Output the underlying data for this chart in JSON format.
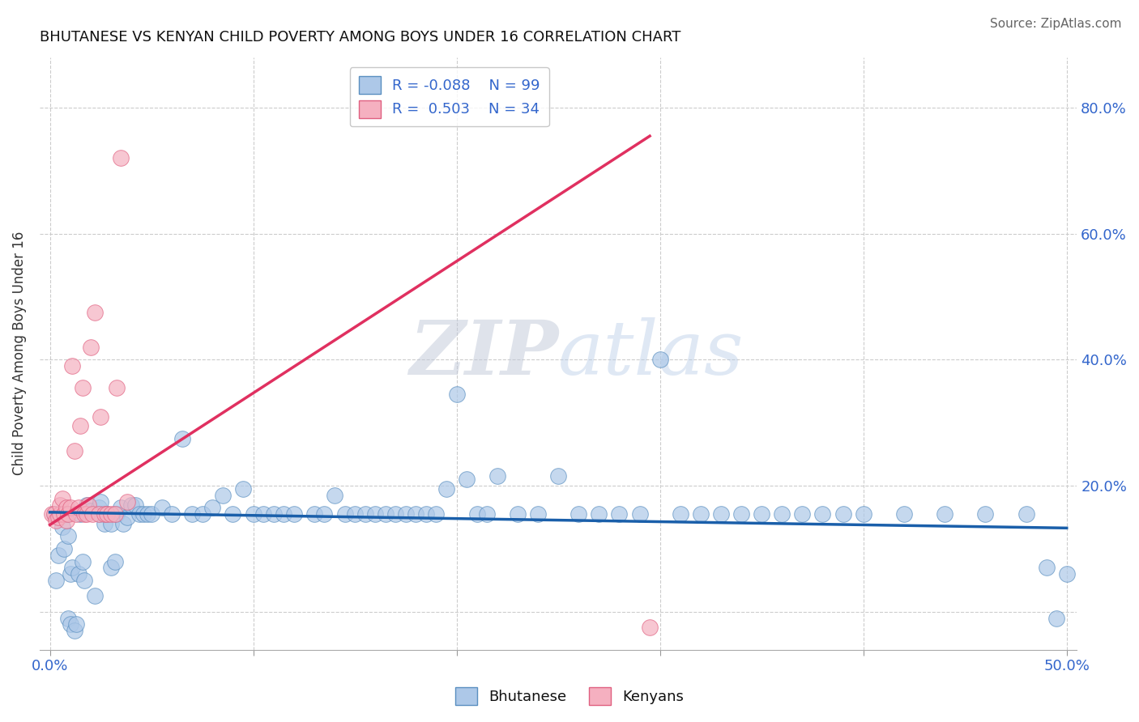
{
  "title": "BHUTANESE VS KENYAN CHILD POVERTY AMONG BOYS UNDER 16 CORRELATION CHART",
  "source": "Source: ZipAtlas.com",
  "ylabel": "Child Poverty Among Boys Under 16",
  "xlim": [
    -0.005,
    0.505
  ],
  "ylim": [
    -0.06,
    0.88
  ],
  "blue_color": "#adc8e8",
  "blue_edge": "#5a8fc0",
  "pink_color": "#f5b0c0",
  "pink_edge": "#e06080",
  "blue_line_color": "#1a5faa",
  "pink_line_color": "#e03060",
  "R_blue": -0.088,
  "N_blue": 99,
  "R_pink": 0.503,
  "N_pink": 34,
  "watermark_text": "ZIPatlas",
  "grid_color": "#cccccc",
  "bg_color": "#ffffff",
  "blue_line_x": [
    0.0,
    0.5
  ],
  "blue_line_y": [
    0.158,
    0.133
  ],
  "pink_line_x": [
    0.0,
    0.295
  ],
  "pink_line_y": [
    0.138,
    0.755
  ],
  "blue_x": [
    0.002,
    0.003,
    0.004,
    0.005,
    0.006,
    0.006,
    0.007,
    0.007,
    0.008,
    0.009,
    0.009,
    0.01,
    0.01,
    0.011,
    0.012,
    0.013,
    0.014,
    0.015,
    0.016,
    0.017,
    0.018,
    0.02,
    0.022,
    0.024,
    0.025,
    0.025,
    0.027,
    0.028,
    0.03,
    0.03,
    0.032,
    0.033,
    0.035,
    0.036,
    0.038,
    0.04,
    0.042,
    0.044,
    0.046,
    0.048,
    0.05,
    0.055,
    0.06,
    0.065,
    0.07,
    0.075,
    0.08,
    0.085,
    0.09,
    0.095,
    0.1,
    0.105,
    0.11,
    0.115,
    0.12,
    0.13,
    0.135,
    0.14,
    0.145,
    0.15,
    0.155,
    0.16,
    0.165,
    0.17,
    0.175,
    0.18,
    0.185,
    0.19,
    0.195,
    0.2,
    0.205,
    0.21,
    0.215,
    0.22,
    0.23,
    0.24,
    0.25,
    0.26,
    0.27,
    0.28,
    0.29,
    0.3,
    0.31,
    0.32,
    0.33,
    0.34,
    0.35,
    0.36,
    0.37,
    0.38,
    0.39,
    0.4,
    0.42,
    0.44,
    0.46,
    0.48,
    0.49,
    0.495,
    0.5
  ],
  "blue_y": [
    0.155,
    0.05,
    0.09,
    0.155,
    0.155,
    0.135,
    0.155,
    0.1,
    0.155,
    0.12,
    -0.01,
    0.06,
    -0.02,
    0.07,
    -0.03,
    -0.02,
    0.06,
    0.155,
    0.08,
    0.05,
    0.17,
    0.16,
    0.025,
    0.165,
    0.155,
    0.175,
    0.14,
    0.155,
    0.14,
    0.07,
    0.08,
    0.155,
    0.165,
    0.14,
    0.15,
    0.17,
    0.17,
    0.155,
    0.155,
    0.155,
    0.155,
    0.165,
    0.155,
    0.275,
    0.155,
    0.155,
    0.165,
    0.185,
    0.155,
    0.195,
    0.155,
    0.155,
    0.155,
    0.155,
    0.155,
    0.155,
    0.155,
    0.185,
    0.155,
    0.155,
    0.155,
    0.155,
    0.155,
    0.155,
    0.155,
    0.155,
    0.155,
    0.155,
    0.195,
    0.345,
    0.21,
    0.155,
    0.155,
    0.215,
    0.155,
    0.155,
    0.215,
    0.155,
    0.155,
    0.155,
    0.155,
    0.4,
    0.155,
    0.155,
    0.155,
    0.155,
    0.155,
    0.155,
    0.155,
    0.155,
    0.155,
    0.155,
    0.155,
    0.155,
    0.155,
    0.155,
    0.07,
    -0.01,
    0.06
  ],
  "pink_x": [
    0.001,
    0.002,
    0.003,
    0.004,
    0.005,
    0.005,
    0.006,
    0.007,
    0.008,
    0.008,
    0.009,
    0.01,
    0.011,
    0.012,
    0.013,
    0.014,
    0.015,
    0.016,
    0.017,
    0.018,
    0.019,
    0.02,
    0.021,
    0.022,
    0.024,
    0.025,
    0.027,
    0.028,
    0.03,
    0.032,
    0.033,
    0.035,
    0.038,
    0.295
  ],
  "pink_y": [
    0.155,
    0.155,
    0.145,
    0.15,
    0.155,
    0.17,
    0.18,
    0.155,
    0.145,
    0.165,
    0.155,
    0.165,
    0.39,
    0.255,
    0.155,
    0.165,
    0.295,
    0.355,
    0.155,
    0.155,
    0.17,
    0.42,
    0.155,
    0.475,
    0.155,
    0.31,
    0.155,
    0.155,
    0.155,
    0.155,
    0.355,
    0.72,
    0.175,
    -0.025
  ]
}
